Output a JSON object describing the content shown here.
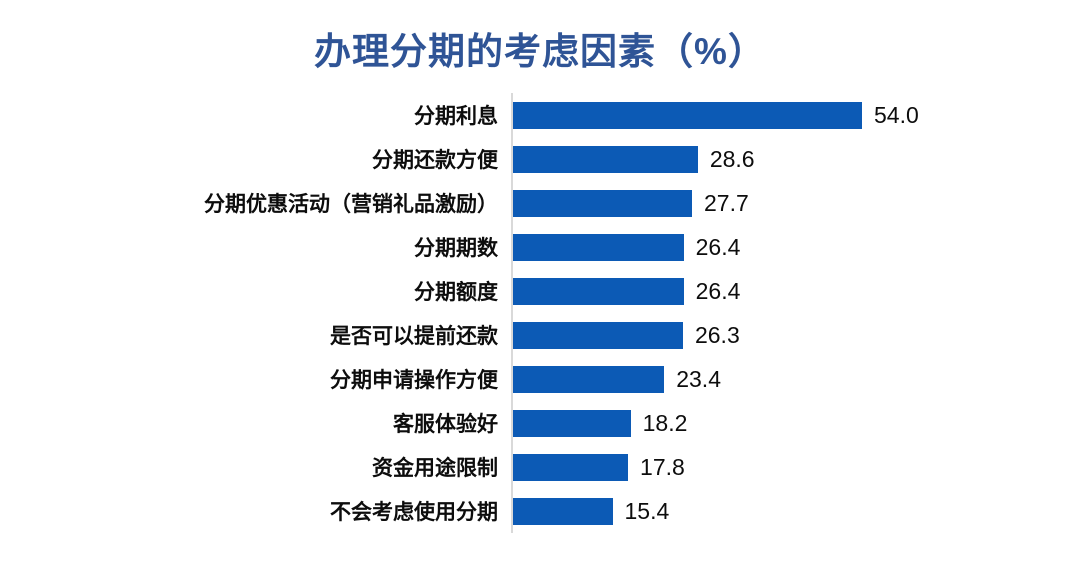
{
  "chart": {
    "title": "办理分期的考虑因素（%）"
  },
  "chart_data": {
    "type": "bar",
    "orientation": "horizontal",
    "title": "办理分期的考虑因素（%）",
    "categories": [
      "分期利息",
      "分期还款方便",
      "分期优惠活动（营销礼品激励）",
      "分期期数",
      "分期额度",
      "是否可以提前还款",
      "分期申请操作方便",
      "客服体验好",
      "资金用途限制",
      "不会考虑使用分期"
    ],
    "values": [
      54.0,
      28.6,
      27.7,
      26.4,
      26.4,
      26.3,
      23.4,
      18.2,
      17.8,
      15.4
    ],
    "value_labels": [
      "54.0",
      "28.6",
      "27.7",
      "26.4",
      "26.4",
      "26.3",
      "23.4",
      "18.2",
      "17.8",
      "15.4"
    ],
    "xlabel": "",
    "ylabel": "",
    "xlim": [
      0,
      56
    ],
    "grid": false,
    "legend": null,
    "bar_color": "#0c5ab5",
    "title_color": "#2f5496",
    "label_color": "#0d0d0d",
    "value_color": "#0d0d0d",
    "axis_line_color": "#d9d9d9"
  }
}
